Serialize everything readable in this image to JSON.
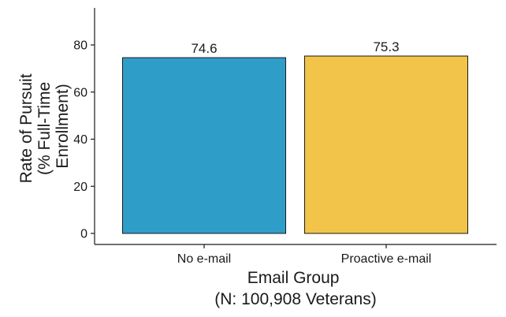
{
  "chart_data": {
    "type": "bar",
    "categories": [
      "No e-mail",
      "Proactive e-mail"
    ],
    "values": [
      74.6,
      75.3
    ],
    "value_labels": [
      "74.6",
      "75.3"
    ],
    "bar_colors": [
      "#2e9ec9",
      "#f2c449"
    ],
    "bar_outline": "#1a1a1a",
    "xlabel": [
      "Email Group",
      "(N: 100,908 Veterans)"
    ],
    "ylabel": [
      "Rate of Pursuit",
      "(% Full-Time",
      "Enrollment)"
    ],
    "ylim": [
      0,
      95
    ],
    "yticks": [
      0,
      20,
      40,
      60,
      80
    ],
    "ytick_labels": [
      "0",
      "20",
      "40",
      "60",
      "80"
    ],
    "grid": false,
    "legend": "none"
  }
}
